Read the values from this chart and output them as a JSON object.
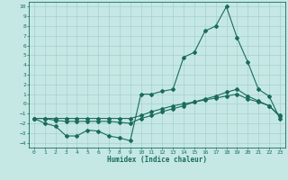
{
  "xlabel": "Humidex (Indice chaleur)",
  "bg_color": "#c5e8e5",
  "grid_color": "#a8d0cc",
  "line_color": "#1a6b5a",
  "xlim": [
    -0.5,
    23.5
  ],
  "ylim": [
    -4.5,
    10.5
  ],
  "xticks": [
    0,
    1,
    2,
    3,
    4,
    5,
    6,
    7,
    8,
    9,
    10,
    11,
    12,
    13,
    14,
    15,
    16,
    17,
    18,
    19,
    20,
    21,
    22,
    23
  ],
  "yticks": [
    -4,
    -3,
    -2,
    -1,
    0,
    1,
    2,
    3,
    4,
    5,
    6,
    7,
    8,
    9,
    10
  ],
  "line1_x": [
    0,
    1,
    2,
    3,
    4,
    5,
    6,
    7,
    8,
    9,
    10,
    11,
    12,
    13,
    14,
    15,
    16,
    17,
    18,
    19,
    20,
    21,
    22,
    23
  ],
  "line1_y": [
    -1.5,
    -2.0,
    -2.3,
    -3.3,
    -3.3,
    -2.7,
    -2.8,
    -3.3,
    -3.5,
    -3.8,
    1.0,
    1.0,
    1.3,
    1.5,
    4.8,
    5.3,
    7.5,
    8.0,
    10.0,
    6.8,
    4.3,
    1.5,
    0.8,
    -1.5
  ],
  "line2_x": [
    0,
    1,
    2,
    3,
    4,
    5,
    6,
    7,
    8,
    9,
    10,
    11,
    12,
    13,
    14,
    15,
    16,
    17,
    18,
    19,
    20,
    21,
    22,
    23
  ],
  "line2_y": [
    -1.5,
    -1.5,
    -1.7,
    -1.8,
    -1.8,
    -1.8,
    -1.8,
    -1.8,
    -1.9,
    -2.0,
    -1.5,
    -1.2,
    -0.8,
    -0.5,
    -0.2,
    0.2,
    0.5,
    0.8,
    1.2,
    1.5,
    0.8,
    0.3,
    -0.2,
    -1.3
  ],
  "line3_x": [
    0,
    1,
    2,
    3,
    4,
    5,
    6,
    7,
    8,
    9,
    10,
    11,
    12,
    13,
    14,
    15,
    16,
    17,
    18,
    19,
    20,
    21,
    22,
    23
  ],
  "line3_y": [
    -1.5,
    -1.5,
    -1.5,
    -1.5,
    -1.5,
    -1.5,
    -1.5,
    -1.5,
    -1.5,
    -1.5,
    -1.2,
    -0.8,
    -0.5,
    -0.2,
    0.0,
    0.2,
    0.4,
    0.6,
    0.8,
    1.0,
    0.5,
    0.2,
    -0.2,
    -1.2
  ]
}
